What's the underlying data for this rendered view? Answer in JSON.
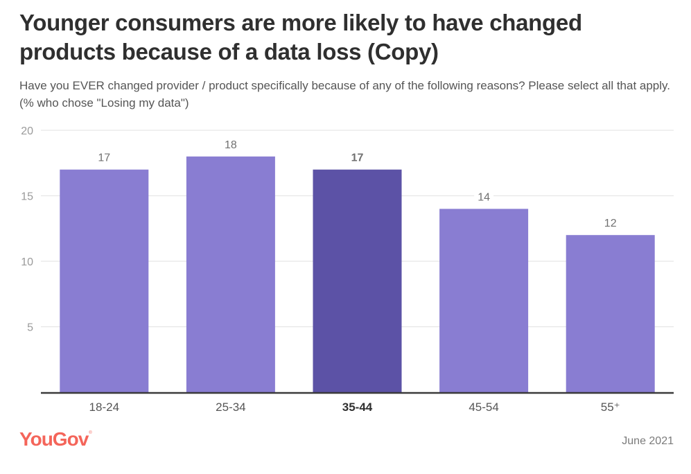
{
  "header": {
    "title": "Younger consumers are more likely to have changed products because of a data loss (Copy)",
    "subtitle": "Have you EVER changed provider / product specifically because of any of the following reasons? Please select all that apply. (% who chose \"Losing my data\")"
  },
  "footer": {
    "brand": "YouGov",
    "brand_mark": "®",
    "date": "June 2021"
  },
  "colors": {
    "bar": "#897dd2",
    "bar_highlight": "#5c52a6",
    "brand": "#f4655a",
    "gridline": "#e6e6e6",
    "axis": "#3a3a3a",
    "tick_label": "#9a9a9a",
    "value_label": "#707070"
  },
  "chart_data": {
    "type": "bar",
    "title": "Younger consumers are more likely to have changed products because of a data loss (Copy)",
    "subtitle": "Have you EVER changed provider / product specifically because of any of the following reasons? Please select all that apply. (% who chose \"Losing my data\")",
    "xlabel": "",
    "ylabel": "",
    "categories": [
      "18-24",
      "25-34",
      "35-44",
      "45-54",
      "55+"
    ],
    "category_display": [
      "18-24",
      "25-34",
      "35-44",
      "45-54",
      "55⁺"
    ],
    "values": [
      17,
      18,
      17,
      14,
      12
    ],
    "highlighted": "35-44",
    "ylim": [
      0,
      20
    ],
    "yticks": [
      5,
      10,
      15,
      20
    ],
    "grid": true,
    "legend": "none",
    "source_note": "June 2021"
  }
}
